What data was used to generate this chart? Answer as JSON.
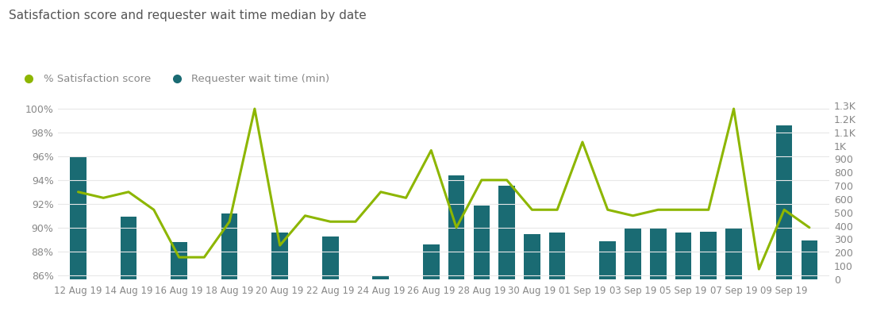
{
  "title": "Satisfaction score and requester wait time median by date",
  "n_points": 30,
  "xtick_labels": [
    "12 Aug 19",
    "14 Aug 19",
    "16 Aug 19",
    "18 Aug 19",
    "20 Aug 19",
    "22 Aug 19",
    "24 Aug 19",
    "26 Aug 19",
    "28 Aug 19",
    "30 Aug 19",
    "01 Sep 19",
    "03 Sep 19",
    "05 Sep 19",
    "07 Sep 19",
    "09 Sep 19"
  ],
  "xtick_positions": [
    0,
    2,
    4,
    6,
    8,
    10,
    12,
    14,
    16,
    18,
    20,
    22,
    24,
    26,
    28
  ],
  "satisfaction_score": [
    93.0,
    92.5,
    93.0,
    91.5,
    87.5,
    87.5,
    90.5,
    100.0,
    88.5,
    91.0,
    90.5,
    90.5,
    93.0,
    92.5,
    96.5,
    90.0,
    94.0,
    94.0,
    91.5,
    91.5,
    97.2,
    91.5,
    91.0,
    91.5,
    91.5,
    91.5,
    100.0,
    86.5,
    91.5,
    90.0
  ],
  "wait_time": [
    920,
    0,
    470,
    0,
    280,
    0,
    490,
    0,
    350,
    0,
    320,
    0,
    25,
    0,
    260,
    780,
    550,
    700,
    340,
    350,
    0,
    285,
    380,
    380,
    350,
    355,
    380,
    0,
    1150,
    290
  ],
  "bar_color": "#1a6b73",
  "line_color": "#8db600",
  "bg_color": "#ffffff",
  "title_color": "#555555",
  "tick_color": "#888888",
  "legend_satisfaction_label": "% Satisfaction score",
  "legend_wait_label": "Requester wait time (min)",
  "left_ytick_values": [
    86,
    88,
    90,
    92,
    94,
    96,
    98,
    100
  ],
  "right_ytick_values": [
    0,
    100,
    200,
    300,
    400,
    500,
    600,
    700,
    800,
    900,
    1000,
    1100,
    1200,
    1300
  ],
  "ylabel_left_min": 85.5,
  "ylabel_left_max": 101.0,
  "ylabel_right_min": -13,
  "ylabel_right_max": 1365
}
